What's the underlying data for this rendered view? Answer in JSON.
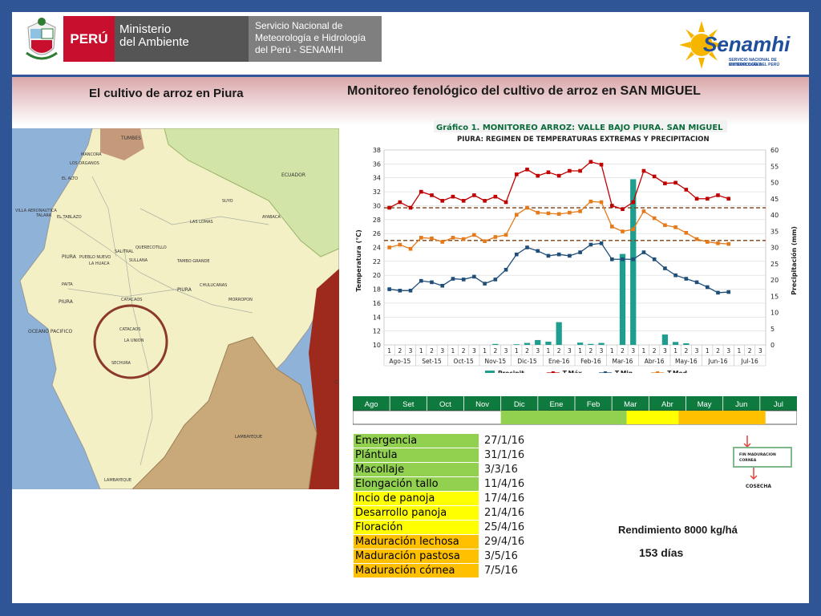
{
  "header": {
    "peru_label": "PERÚ",
    "ministry_line1": "Ministerio",
    "ministry_line2": "del Ambiente",
    "senamhi_full_line1": "Servicio Nacional de",
    "senamhi_full_line2": "Meteorología e Hidrología",
    "senamhi_full_line3": "del Perú - SENAMHI",
    "senamhi_brand": "Senamhi",
    "senamhi_sub1": "SERVICIO NACIONAL DE METEOROLOGÍA",
    "senamhi_sub2": "E HIDROLOGÍA DEL PERÚ"
  },
  "titles": {
    "left": "El cultivo de arroz en Piura",
    "right": "Monitoreo fenológico del cultivo de arroz en SAN MIGUEL"
  },
  "map": {
    "labels": [
      "TUMBES",
      "MANCORA",
      "LOS ORGANOS",
      "EL ALTO",
      "ECUADOR",
      "SUYO",
      "VILLA AERONAUTICA",
      "TALARA",
      "EL TABLAZO",
      "AYABACA",
      "LAS LOMAS",
      "PIURA",
      "PUEBLO NUEVO",
      "LA HUACA",
      "SULLANA",
      "QUERECOTILLO",
      "SALITRAL",
      "TAMBO GRANDE",
      "PAITA",
      "PIURA",
      "CHULUCANAS",
      "MORROPON",
      "PIURA",
      "CATACAOS",
      "CATACAOS",
      "LA UNION",
      "OCEANO PACIFICO",
      "SECHURA",
      "LAMBAYEQUE",
      "LAMBAYEQUE",
      "C"
    ],
    "colors": {
      "ocean": "#8fb2d8",
      "land": "#f3f0c6",
      "ecuador": "#d3e4a8",
      "lambayeque": "#c9a97a",
      "cajamarca": "#9e2a1e",
      "tumbes": "#c49a7a"
    }
  },
  "chart_data": {
    "type": "bar+line",
    "title": "Gráfico 1. MONITOREO ARROZ: VALLE BAJO PIURA. SAN MIGUEL",
    "subtitle": "PIURA: REGIMEN DE TEMPERATURAS EXTREMAS Y PRECIPITACION",
    "ylabel": "Temperatura (°C)",
    "y2label": "Precipitación (mm)",
    "ylim": [
      10,
      38
    ],
    "y2lim": [
      0,
      60
    ],
    "y_ticks": [
      "10",
      "12",
      "14",
      "16",
      "18",
      "20",
      "22",
      "24",
      "26",
      "28",
      "30",
      "32",
      "34",
      "36",
      "38"
    ],
    "y2_ticks": [
      "0",
      "5",
      "10",
      "15",
      "20",
      "25",
      "30",
      "35",
      "40",
      "45",
      "50",
      "55",
      "60"
    ],
    "decades": [
      "1",
      "2",
      "3",
      "1",
      "2",
      "3",
      "1",
      "2",
      "3",
      "1",
      "2",
      "3",
      "1",
      "2",
      "3",
      "1",
      "2",
      "3",
      "1",
      "2",
      "3",
      "1",
      "2",
      "3",
      "1",
      "2",
      "3",
      "1",
      "2",
      "3",
      "1",
      "2",
      "3",
      "1",
      "2",
      "3"
    ],
    "months": [
      "Ago-15",
      "Set-15",
      "Oct-15",
      "Nov-15",
      "Dic-15",
      "Ene-16",
      "Feb-16",
      "Mar-16",
      "Abr-16",
      "May-16",
      "Jun-16",
      "Jul-16"
    ],
    "series": [
      {
        "name": "Precipit.",
        "kind": "bar",
        "axis": "right",
        "color": "#1f9e8f",
        "values": [
          0,
          0,
          0,
          0,
          0,
          0,
          0,
          0,
          0,
          0,
          0.3,
          0,
          0.2,
          0.6,
          1.5,
          1.0,
          7.0,
          0,
          0.7,
          0.3,
          0.6,
          0,
          28.0,
          51.0,
          0,
          0,
          3.2,
          0.9,
          0.5,
          0,
          0,
          0,
          0,
          0,
          0,
          0
        ]
      },
      {
        "name": "T.Máx.",
        "kind": "line",
        "axis": "left",
        "color": "#c00000",
        "values": [
          29.7,
          30.5,
          29.7,
          32.0,
          31.5,
          30.7,
          31.3,
          30.7,
          31.5,
          30.7,
          31.3,
          30.5,
          34.5,
          35.2,
          34.3,
          34.8,
          34.3,
          35.0,
          35.0,
          36.3,
          35.9,
          30.0,
          29.5,
          30.5,
          35.0,
          34.2,
          33.2,
          33.3,
          32.3,
          31.0,
          31.0,
          31.5,
          31.0,
          null,
          null,
          null
        ]
      },
      {
        "name": "T.Min.",
        "kind": "line",
        "axis": "left",
        "color": "#1f4e79",
        "values": [
          18.0,
          17.8,
          17.8,
          19.2,
          19.0,
          18.5,
          19.5,
          19.4,
          19.8,
          18.8,
          19.4,
          20.8,
          23.0,
          24.0,
          23.5,
          22.8,
          23.0,
          22.8,
          23.3,
          24.4,
          24.6,
          22.3,
          22.3,
          22.3,
          23.3,
          22.3,
          21.0,
          20.0,
          19.5,
          19.0,
          18.3,
          17.5,
          17.6,
          null,
          null,
          null
        ]
      },
      {
        "name": "T.Med.",
        "kind": "line",
        "axis": "left",
        "color": "#e47a1a",
        "values": [
          24.0,
          24.4,
          23.8,
          25.4,
          25.3,
          24.8,
          25.4,
          25.2,
          25.8,
          24.9,
          25.5,
          25.8,
          28.7,
          29.7,
          29.0,
          28.9,
          28.8,
          29.0,
          29.2,
          30.6,
          30.5,
          27.0,
          26.3,
          26.6,
          29.2,
          28.2,
          27.2,
          26.9,
          26.1,
          25.2,
          24.8,
          24.6,
          24.5,
          null,
          null,
          null
        ]
      }
    ],
    "ref_lines": [
      {
        "axis": "left",
        "value": 29.7,
        "color": "#7f3f10"
      },
      {
        "axis": "left",
        "value": 25.0,
        "color": "#7f3f10"
      }
    ],
    "legend_position": "bottom"
  },
  "calendar": {
    "months": [
      "Ago",
      "Set",
      "Oct",
      "Nov",
      "Dic",
      "Ene",
      "Feb",
      "Mar",
      "Abr",
      "May",
      "Jun",
      "Jul"
    ],
    "header_color": "#0f7a3d",
    "phases": [
      {
        "from": 4,
        "to": 7.4,
        "color": "#92d050"
      },
      {
        "from": 7.4,
        "to": 8.8,
        "color": "#ffff00"
      },
      {
        "from": 8.8,
        "to": 11.15,
        "color": "#ffc000"
      }
    ]
  },
  "stages": [
    {
      "name": "Emergencia",
      "date": "27/1/16",
      "color": "#92d050"
    },
    {
      "name": "Plántula",
      "date": "31/1/16",
      "color": "#92d050"
    },
    {
      "name": "Macollaje",
      "date": "3/3/16",
      "color": "#92d050"
    },
    {
      "name": "Elongación tallo",
      "date": "11/4/16",
      "color": "#92d050"
    },
    {
      "name": "Incio  de panoja",
      "date": "17/4/16",
      "color": "#ffff00"
    },
    {
      "name": "Desarrollo panoja",
      "date": "21/4/16",
      "color": "#ffff00"
    },
    {
      "name": "Floración",
      "date": "25/4/16",
      "color": "#ffff00"
    },
    {
      "name": "Maduración lechosa",
      "date": "29/4/16",
      "color": "#ffc000"
    },
    {
      "name": "Maduración pastosa",
      "date": "3/5/16",
      "color": "#ffc000"
    },
    {
      "name": "Maduración córnea",
      "date": "7/5/16",
      "color": "#ffc000"
    }
  ],
  "annotations": {
    "fin_maduracion_line1": "FIN MADURACION",
    "fin_maduracion_line2": "CORNEA",
    "cosecha": "COSECHA",
    "yield": "Rendimiento 8000 kg/há",
    "days": "153 días"
  }
}
